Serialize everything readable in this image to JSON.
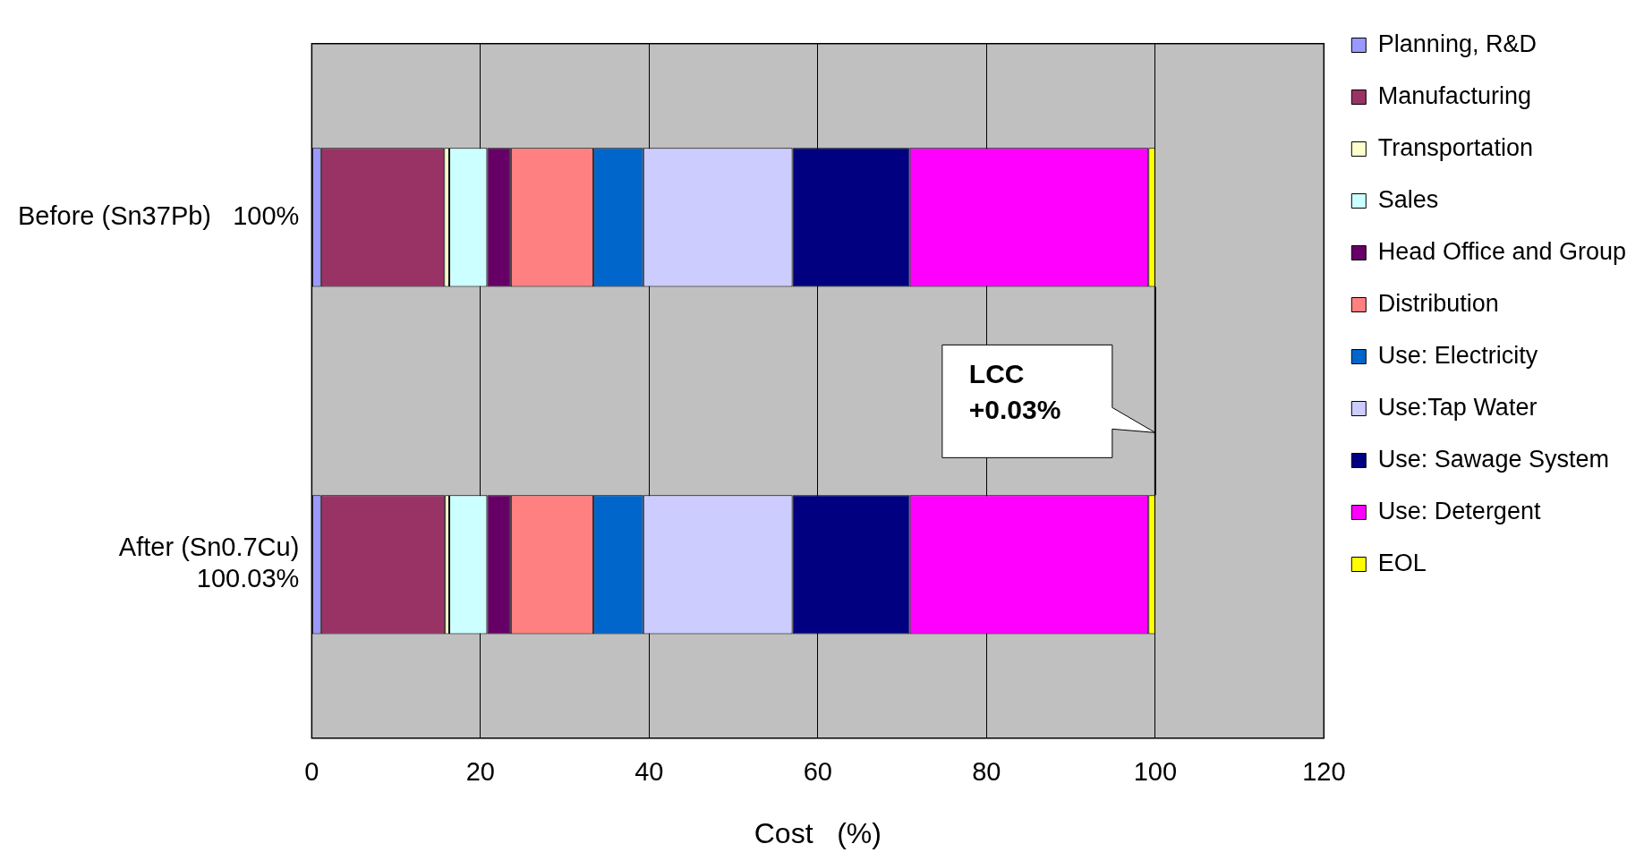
{
  "chart_data": {
    "type": "bar",
    "orientation": "horizontal",
    "stacked": true,
    "categories": [
      "Before (Sn37Pb)   100%",
      "After (Sn0.7Cu)\n100.03%"
    ],
    "series": [
      {
        "name": "Planning, R&D",
        "color": "#9999ff",
        "values": [
          1.1,
          1.1
        ]
      },
      {
        "name": "Manufacturing",
        "color": "#993366",
        "values": [
          14.6,
          14.7
        ]
      },
      {
        "name": "Transportation",
        "color": "#ffffcc",
        "values": [
          0.6,
          0.5
        ]
      },
      {
        "name": "Sales",
        "color": "#ccffff",
        "values": [
          4.5,
          4.5
        ]
      },
      {
        "name": "Head Office and Group",
        "color": "#660066",
        "values": [
          2.8,
          2.8
        ]
      },
      {
        "name": "Distribution",
        "color": "#ff8080",
        "values": [
          9.8,
          9.8
        ]
      },
      {
        "name": "Use: Electricity",
        "color": "#0066cc",
        "values": [
          5.9,
          5.9
        ]
      },
      {
        "name": "Use:Tap Water",
        "color": "#ccccff",
        "values": [
          17.7,
          17.7
        ]
      },
      {
        "name": "Use: Sawage System",
        "color": "#000080",
        "values": [
          13.9,
          13.9
        ]
      },
      {
        "name": "Use: Detergent",
        "color": "#ff00ff",
        "values": [
          28.3,
          28.3
        ]
      },
      {
        "name": "EOL",
        "color": "#ffff00",
        "values": [
          0.8,
          0.8
        ]
      }
    ],
    "xlabel": "Cost   (%)",
    "xlim": [
      0,
      120
    ],
    "xticks": [
      0,
      20,
      40,
      60,
      80,
      100,
      120
    ],
    "grid": "x",
    "legend": "right",
    "annotations": [
      "LCC\n+0.03%"
    ]
  }
}
